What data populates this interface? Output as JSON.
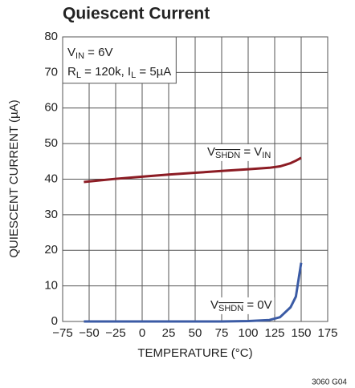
{
  "chart_data": {
    "type": "line",
    "title": "Quiescent Current",
    "xlabel": "TEMPERATURE (°C)",
    "ylabel": "QUIESCENT CURRENT (µA)",
    "footnote": "3060 G04",
    "x": [
      -55,
      -25,
      0,
      25,
      50,
      75,
      100,
      120,
      130,
      140,
      145,
      150
    ],
    "series": [
      {
        "color": "#8c1c24",
        "values": [
          39.2,
          40.1,
          40.7,
          41.3,
          41.8,
          42.3,
          42.8,
          43.2,
          43.6,
          44.5,
          45.2,
          46
        ]
      },
      {
        "color": "#3b5ba5",
        "values": [
          0,
          0,
          0,
          0,
          0,
          0,
          0.1,
          0.4,
          1.2,
          4,
          7,
          16.5
        ]
      }
    ],
    "annotations": [
      {
        "parts": [
          {
            "text": "V"
          },
          {
            "text": "IN",
            "style": "sub"
          },
          {
            "text": " = 6V"
          }
        ]
      },
      {
        "parts": [
          {
            "text": "R"
          },
          {
            "text": "L",
            "style": "sub"
          },
          {
            "text": " = 120k, I"
          },
          {
            "text": "L",
            "style": "sub"
          },
          {
            "text": " = 5µA"
          }
        ]
      },
      {
        "parts": [
          {
            "text": "V"
          },
          {
            "text": "SHDN",
            "style": "subover"
          },
          {
            "text": " = V"
          },
          {
            "text": "IN",
            "style": "sub"
          }
        ]
      },
      {
        "parts": [
          {
            "text": "V"
          },
          {
            "text": "SHDN",
            "style": "subover"
          },
          {
            "text": " = 0V"
          }
        ]
      }
    ],
    "xlim": [
      -75,
      175
    ],
    "xticks": [
      {
        "value": -75,
        "label": "−75"
      },
      {
        "value": -50,
        "label": "−50"
      },
      {
        "value": -25,
        "label": "−25"
      },
      0,
      25,
      50,
      75,
      100,
      125,
      150,
      175
    ],
    "ylim": [
      0,
      80
    ],
    "yticks": [
      0,
      10,
      20,
      30,
      40,
      50,
      60,
      70,
      80
    ],
    "grid": true
  }
}
